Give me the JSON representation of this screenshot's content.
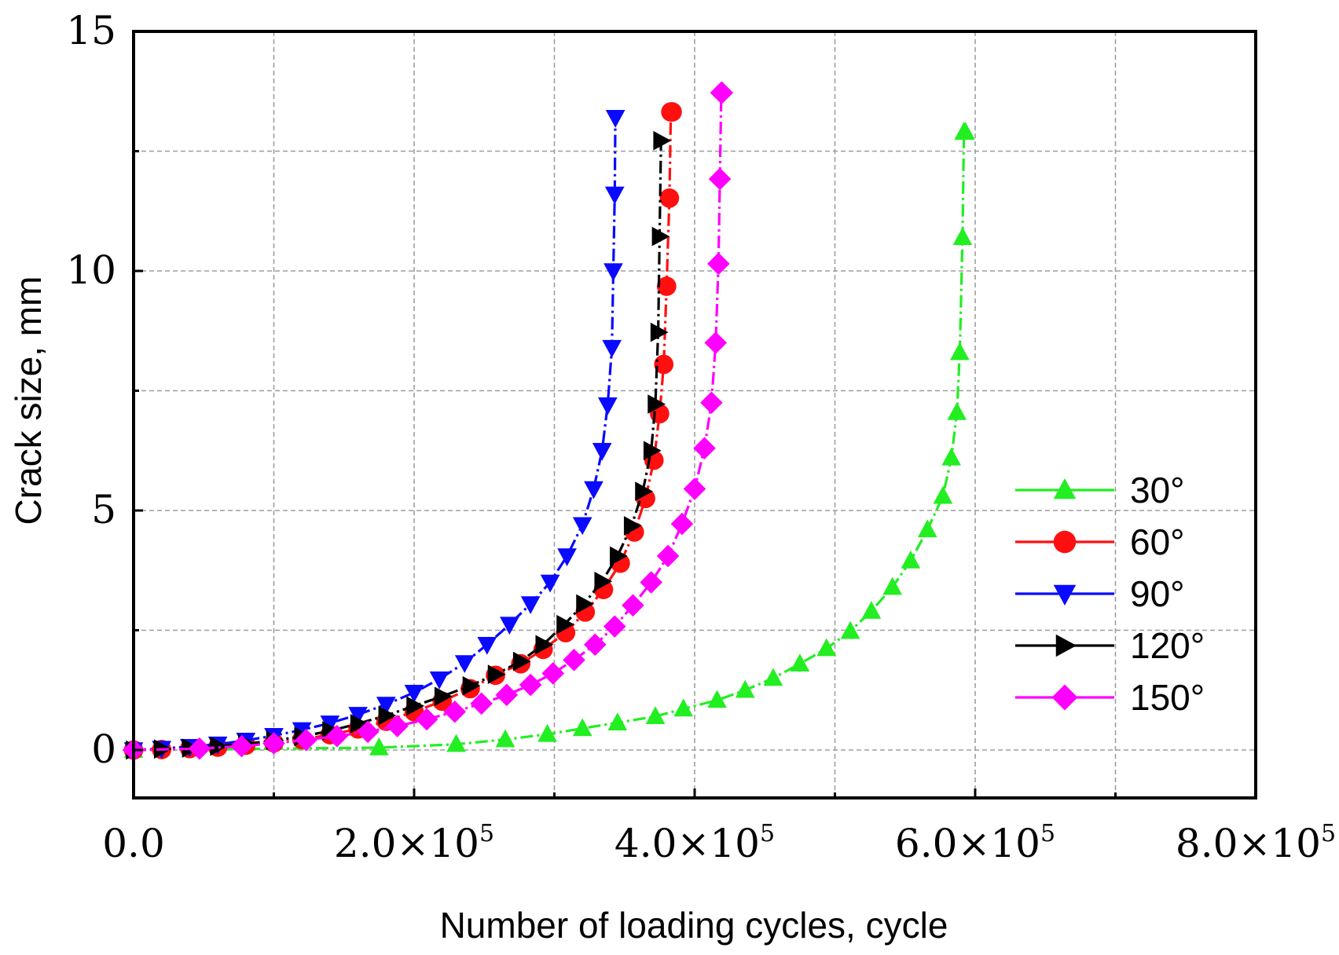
{
  "chart_data": {
    "type": "line",
    "title": "",
    "xlabel": "Number of loading cycles, cycle",
    "ylabel": "Crack size, mm",
    "xlim": [
      0,
      800000
    ],
    "ylim": [
      -1,
      15
    ],
    "grid": true,
    "legend_position": "right-middle",
    "x_ticks": [
      {
        "value": 0,
        "mantissa": "0.0",
        "exponent": ""
      },
      {
        "value": 200000,
        "mantissa": "2.0×10",
        "exponent": "5"
      },
      {
        "value": 400000,
        "mantissa": "4.0×10",
        "exponent": "5"
      },
      {
        "value": 600000,
        "mantissa": "6.0×10",
        "exponent": "5"
      },
      {
        "value": 800000,
        "mantissa": "8.0×10",
        "exponent": "5"
      }
    ],
    "y_ticks": [
      {
        "value": 0,
        "label": "0"
      },
      {
        "value": 5,
        "label": "5"
      },
      {
        "value": 10,
        "label": "10"
      },
      {
        "value": 15,
        "label": "15"
      }
    ],
    "series": [
      {
        "name": "30°",
        "color": "#22ee22",
        "marker": "triangle-up",
        "x": [
          0,
          175000,
          230000,
          265000,
          295000,
          320000,
          345000,
          372000,
          392000,
          416000,
          436000,
          456000,
          475000,
          494000,
          511000,
          526000,
          541000,
          554000,
          566000,
          577000,
          583000,
          587000,
          589000,
          591000,
          592000,
          593000
        ],
        "y": [
          0,
          0.05,
          0.12,
          0.22,
          0.33,
          0.45,
          0.57,
          0.7,
          0.86,
          1.04,
          1.25,
          1.5,
          1.8,
          2.12,
          2.48,
          2.9,
          3.4,
          3.95,
          4.6,
          5.3,
          6.1,
          7.05,
          8.3,
          10.7,
          12.9,
          12.9
        ]
      },
      {
        "name": "60°",
        "color": "#ff0f0f",
        "marker": "circle",
        "x": [
          0,
          20000,
          40000,
          60000,
          80000,
          100000,
          120000,
          140000,
          160000,
          180000,
          200000,
          220000,
          240000,
          258000,
          276000,
          292000,
          308000,
          322000,
          335000,
          347000,
          357000,
          365000,
          371000,
          375000,
          378000,
          380000,
          382000,
          383000,
          384000
        ],
        "y": [
          0,
          0.01,
          0.03,
          0.06,
          0.1,
          0.15,
          0.22,
          0.32,
          0.44,
          0.6,
          0.8,
          1.02,
          1.28,
          1.56,
          1.8,
          2.1,
          2.45,
          2.88,
          3.35,
          3.9,
          4.55,
          5.25,
          6.05,
          7.02,
          8.05,
          9.68,
          11.52,
          13.32,
          13.32
        ]
      },
      {
        "name": "90°",
        "color": "#0a0aff",
        "marker": "triangle-down",
        "x": [
          0,
          20000,
          40000,
          60000,
          80000,
          100000,
          120000,
          140000,
          160000,
          180000,
          200000,
          218000,
          236000,
          252000,
          268000,
          283000,
          297000,
          309000,
          320000,
          328000,
          334000,
          338000,
          341000,
          342000,
          343000,
          343500
        ],
        "y": [
          0,
          0.03,
          0.07,
          0.12,
          0.2,
          0.3,
          0.42,
          0.56,
          0.74,
          0.95,
          1.2,
          1.48,
          1.82,
          2.2,
          2.62,
          3.05,
          3.5,
          4.05,
          4.7,
          5.45,
          6.25,
          7.2,
          8.4,
          10.0,
          11.6,
          13.2
        ]
      },
      {
        "name": "120°",
        "color": "#000000",
        "marker": "triangle-right",
        "x": [
          0,
          20000,
          40000,
          60000,
          80000,
          100000,
          120000,
          140000,
          160000,
          180000,
          200000,
          220000,
          240000,
          258000,
          276000,
          292000,
          307000,
          321000,
          334000,
          345000,
          355000,
          363000,
          369000,
          372000,
          374000,
          375000,
          376000
        ],
        "y": [
          0,
          0.02,
          0.04,
          0.08,
          0.13,
          0.2,
          0.28,
          0.4,
          0.55,
          0.72,
          0.92,
          1.12,
          1.34,
          1.58,
          1.85,
          2.2,
          2.62,
          3.05,
          3.52,
          4.05,
          4.68,
          5.4,
          6.25,
          7.22,
          8.72,
          10.72,
          12.72
        ]
      },
      {
        "name": "150°",
        "color": "#ff00ff",
        "marker": "diamond",
        "x": [
          0,
          47000,
          77000,
          100000,
          123000,
          145000,
          167000,
          188000,
          209000,
          229000,
          248000,
          266000,
          283000,
          299000,
          314000,
          329000,
          343000,
          356000,
          369000,
          381000,
          391000,
          400000,
          407000,
          412000,
          415000,
          417000,
          418000,
          419000,
          419500
        ],
        "y": [
          0,
          0.03,
          0.08,
          0.14,
          0.21,
          0.29,
          0.38,
          0.5,
          0.64,
          0.8,
          0.97,
          1.15,
          1.36,
          1.6,
          1.88,
          2.2,
          2.58,
          3.02,
          3.5,
          4.05,
          4.72,
          5.45,
          6.3,
          7.25,
          8.5,
          10.15,
          11.92,
          13.72,
          13.72
        ]
      }
    ]
  }
}
